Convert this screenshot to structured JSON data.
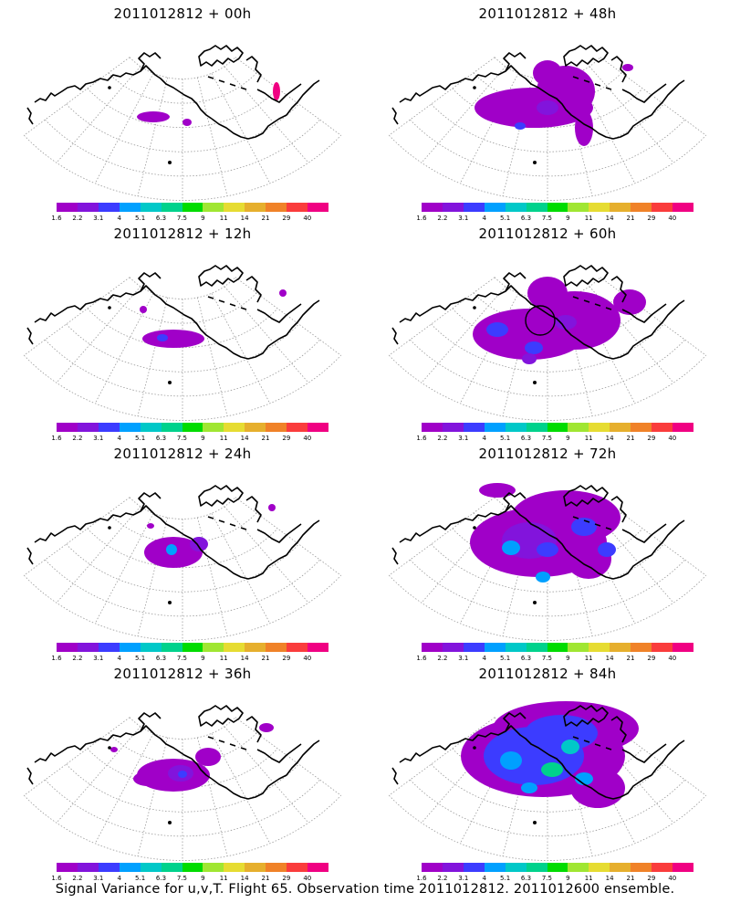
{
  "panels": [
    {
      "id": "p00",
      "title": "2011012812 + 00h",
      "coverage": 0
    },
    {
      "id": "p48",
      "title": "2011012812 + 48h",
      "coverage": 3
    },
    {
      "id": "p12",
      "title": "2011012812 + 12h",
      "coverage": 1
    },
    {
      "id": "p60",
      "title": "2011012812 + 60h",
      "coverage": 4
    },
    {
      "id": "p24",
      "title": "2011012812 + 24h",
      "coverage": 1.5
    },
    {
      "id": "p72",
      "title": "2011012812 + 72h",
      "coverage": 5
    },
    {
      "id": "p36",
      "title": "2011012812 + 36h",
      "coverage": 2
    },
    {
      "id": "p84",
      "title": "2011012812 + 84h",
      "coverage": 6
    }
  ],
  "colorbar": {
    "colors": [
      "#a000c8",
      "#8214dc",
      "#3c3cff",
      "#00a0ff",
      "#00c8c8",
      "#00d28c",
      "#00dc00",
      "#a0e632",
      "#e6dc32",
      "#e6af2d",
      "#f08228",
      "#fa3c3c",
      "#f00082"
    ],
    "labels": [
      "1.6",
      "2.2",
      "3.1",
      "4",
      "5.1",
      "6.3",
      "7.5",
      "9",
      "11",
      "14",
      "21",
      "29",
      "40"
    ]
  },
  "footer": "Signal Variance for u,v,T. Flight 65. Observation time 2011012812. 2011012600 ensemble."
}
